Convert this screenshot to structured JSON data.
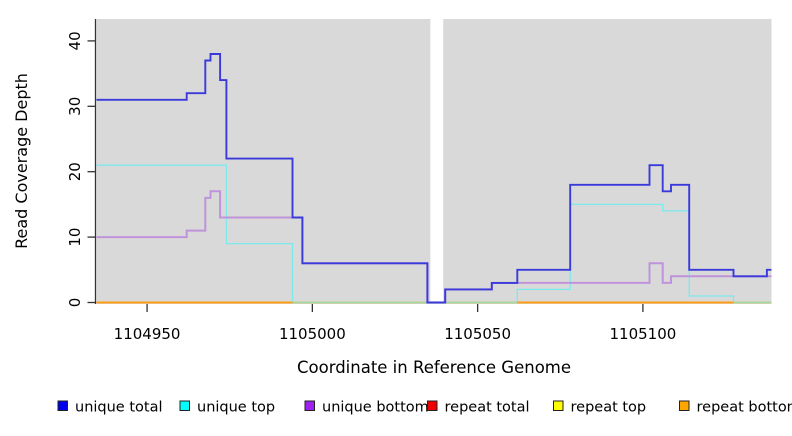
{
  "chart_data": {
    "type": "line",
    "subtype": "step",
    "title": "",
    "xlabel": "Coordinate in Reference Genome",
    "ylabel": "Read Coverage Depth",
    "xlim": [
      1104934.7,
      1105138.9
    ],
    "ylim": [
      0,
      43.35
    ],
    "x_ticks": [
      1104950,
      1105000,
      1105050,
      1105100
    ],
    "x_tick_labels": [
      "1104950",
      "1105000",
      "1105050",
      "1105100"
    ],
    "y_ticks": [
      0,
      10,
      20,
      30,
      40
    ],
    "y_tick_labels": [
      "0",
      "10",
      "20",
      "30",
      "40"
    ],
    "grid": "off",
    "panel_bg": "#d9d9d9",
    "masked_region": {
      "x_start": 1105035.7,
      "x_end": 1105039.6,
      "color": "#ffffff"
    },
    "axis_color": "#333333",
    "legend_position": "bottom",
    "legend": [
      {
        "label": "unique total",
        "color": "#0000ee"
      },
      {
        "label": "unique top",
        "color": "#00ffff"
      },
      {
        "label": "unique bottom",
        "color": "#a020f0"
      },
      {
        "label": "repeat total",
        "color": "#ee0000"
      },
      {
        "label": "repeat top",
        "color": "#ffff00"
      },
      {
        "label": "repeat bottom",
        "color": "#ffa500"
      }
    ],
    "series": [
      {
        "name": "repeat-total",
        "color": "#ee0000",
        "width": 1.4,
        "segments": [
          [
            [
              1104934.7,
              0
            ],
            [
              1105138.9,
              0
            ]
          ]
        ]
      },
      {
        "name": "repeat-top",
        "color": "#ffff00",
        "width": 1.4,
        "segments": [
          [
            [
              1104934.7,
              0
            ],
            [
              1105138.9,
              0
            ]
          ]
        ]
      },
      {
        "name": "unique-top",
        "color": "#7de9ed",
        "width": 1.3,
        "segments": [
          [
            [
              1104934.7,
              21
            ],
            [
              1104974,
              9
            ],
            [
              1104994,
              0
            ],
            [
              1105062,
              2
            ],
            [
              1105078,
              15
            ],
            [
              1105106,
              14
            ],
            [
              1105114,
              1
            ],
            [
              1105127.4,
              0
            ],
            [
              1105138.9,
              0
            ]
          ]
        ]
      },
      {
        "name": "zero-baseline",
        "color": "#a6d7a6",
        "width": 1.4,
        "segments": [
          [
            [
              1104994,
              0
            ],
            [
              1105062,
              0
            ]
          ],
          [
            [
              1105127.4,
              0
            ],
            [
              1105138.9,
              0
            ]
          ]
        ]
      },
      {
        "name": "repeat-bottom",
        "color": "#ff9d16",
        "width": 1.9,
        "segments": [
          [
            [
              1104934.7,
              0
            ],
            [
              1104994,
              0
            ]
          ],
          [
            [
              1105062,
              0
            ],
            [
              1105127.4,
              0
            ]
          ]
        ]
      },
      {
        "name": "unique-bottom",
        "color": "#be93db",
        "width": 2.0,
        "segments": [
          [
            [
              1104934.7,
              10
            ],
            [
              1104962,
              11
            ],
            [
              1104967.6,
              16
            ],
            [
              1104969.2,
              17
            ],
            [
              1104972.1,
              13
            ],
            [
              1104997,
              6
            ],
            [
              1105034.8,
              0
            ],
            [
              1105040.2,
              2
            ],
            [
              1105054.3,
              3
            ],
            [
              1105102,
              6
            ],
            [
              1105106,
              3
            ],
            [
              1105108.5,
              4
            ],
            [
              1105138.9,
              4
            ]
          ]
        ]
      },
      {
        "name": "unique-total",
        "color": "#3a3adb",
        "width": 1.9,
        "segments": [
          [
            [
              1104934.7,
              31
            ],
            [
              1104962,
              32
            ],
            [
              1104967.6,
              37
            ],
            [
              1104969.2,
              38
            ],
            [
              1104972.1,
              34
            ],
            [
              1104974,
              22
            ],
            [
              1104994,
              13
            ],
            [
              1104997,
              6
            ],
            [
              1105034.8,
              0
            ],
            [
              1105040.2,
              2
            ],
            [
              1105054.3,
              3
            ],
            [
              1105062,
              5
            ],
            [
              1105078,
              18
            ],
            [
              1105102,
              21
            ],
            [
              1105106,
              17
            ],
            [
              1105108.5,
              18
            ],
            [
              1105114,
              5
            ],
            [
              1105127.4,
              4
            ],
            [
              1105137.5,
              5
            ],
            [
              1105138.9,
              5
            ]
          ]
        ]
      }
    ]
  }
}
